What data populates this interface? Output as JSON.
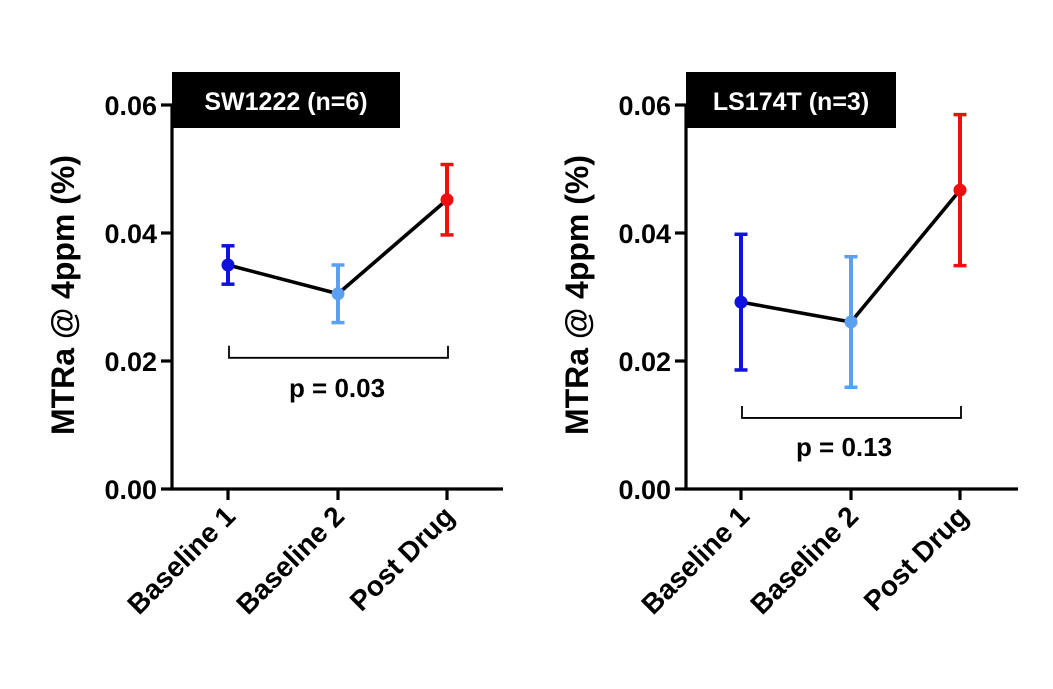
{
  "chart_data": [
    {
      "type": "line",
      "title": "SW1222 (n=6)",
      "ylabel": "MTRa @ 4ppm (%)",
      "xlabel": "",
      "ylim": [
        0,
        0.06
      ],
      "yticks": [
        "0.00",
        "0.02",
        "0.04",
        "0.06"
      ],
      "categories": [
        "Baseline 1",
        "Baseline 2",
        "Post Drug"
      ],
      "values": [
        0.035,
        0.0305,
        0.0452
      ],
      "errors": [
        0.003,
        0.0045,
        0.0055
      ],
      "point_colors": [
        "#1010e0",
        "#5aa0ee",
        "#ee1010"
      ],
      "bracket": {
        "from": "Baseline 1",
        "to": "Post Drug",
        "y": 0.0205,
        "label": "p = 0.03"
      }
    },
    {
      "type": "line",
      "title": "LS174T (n=3)",
      "ylabel": "MTRa @ 4ppm (%)",
      "xlabel": "",
      "ylim": [
        0,
        0.06
      ],
      "yticks": [
        "0.00",
        "0.02",
        "0.04",
        "0.06"
      ],
      "categories": [
        "Baseline 1",
        "Baseline 2",
        "Post Drug"
      ],
      "values": [
        0.0292,
        0.0261,
        0.0467
      ],
      "errors": [
        0.0106,
        0.0102,
        0.0118
      ],
      "point_colors": [
        "#1010e0",
        "#5aa0ee",
        "#ee1010"
      ],
      "bracket": {
        "from": "Baseline 1",
        "to": "Post Drug",
        "y": 0.0111,
        "label": "p = 0.13"
      }
    }
  ]
}
